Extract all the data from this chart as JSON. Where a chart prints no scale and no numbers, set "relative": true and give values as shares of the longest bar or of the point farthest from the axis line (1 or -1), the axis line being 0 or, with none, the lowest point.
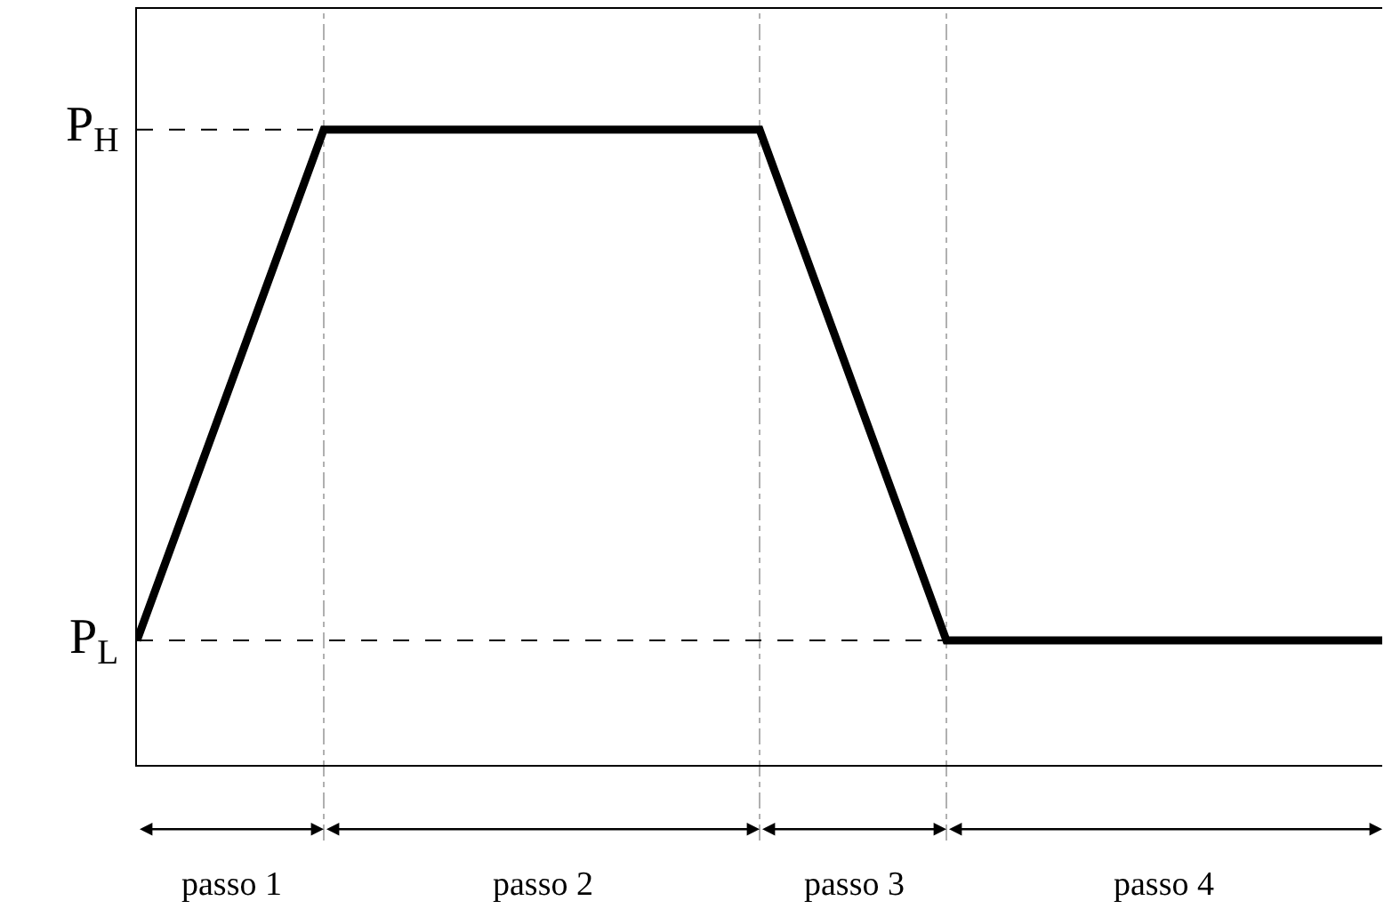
{
  "chart_data": {
    "type": "line",
    "relative": true,
    "categories": [
      null,
      null,
      null,
      null,
      null,
      null,
      null,
      null,
      null,
      null,
      null,
      null,
      null,
      null,
      null,
      null,
      null,
      null,
      null,
      null,
      null
    ],
    "series": [
      {
        "color": "#000000",
        "values": [
          0.196,
          0.464,
          0.732,
          1,
          1,
          1,
          1,
          1,
          1,
          1,
          1,
          0.732,
          0.464,
          0.196,
          0.196,
          0.196,
          0.196,
          0.196,
          0.196,
          0.196,
          0.196
        ]
      }
    ],
    "ref_lines": [
      {
        "axis": "y",
        "value": 1,
        "label": "P$_{H}$",
        "line_style": "dashed",
        "color": "#000000"
      },
      {
        "axis": "y",
        "value": 0.196,
        "label": "P$_{L}$",
        "line_style": "dashed",
        "color": "#000000"
      }
    ],
    "annotations": [
      "passo 1",
      "passo 2",
      "passo 3",
      "passo 4"
    ],
    "marker": "none",
    "line_style": "solid",
    "grid": "x"
  }
}
